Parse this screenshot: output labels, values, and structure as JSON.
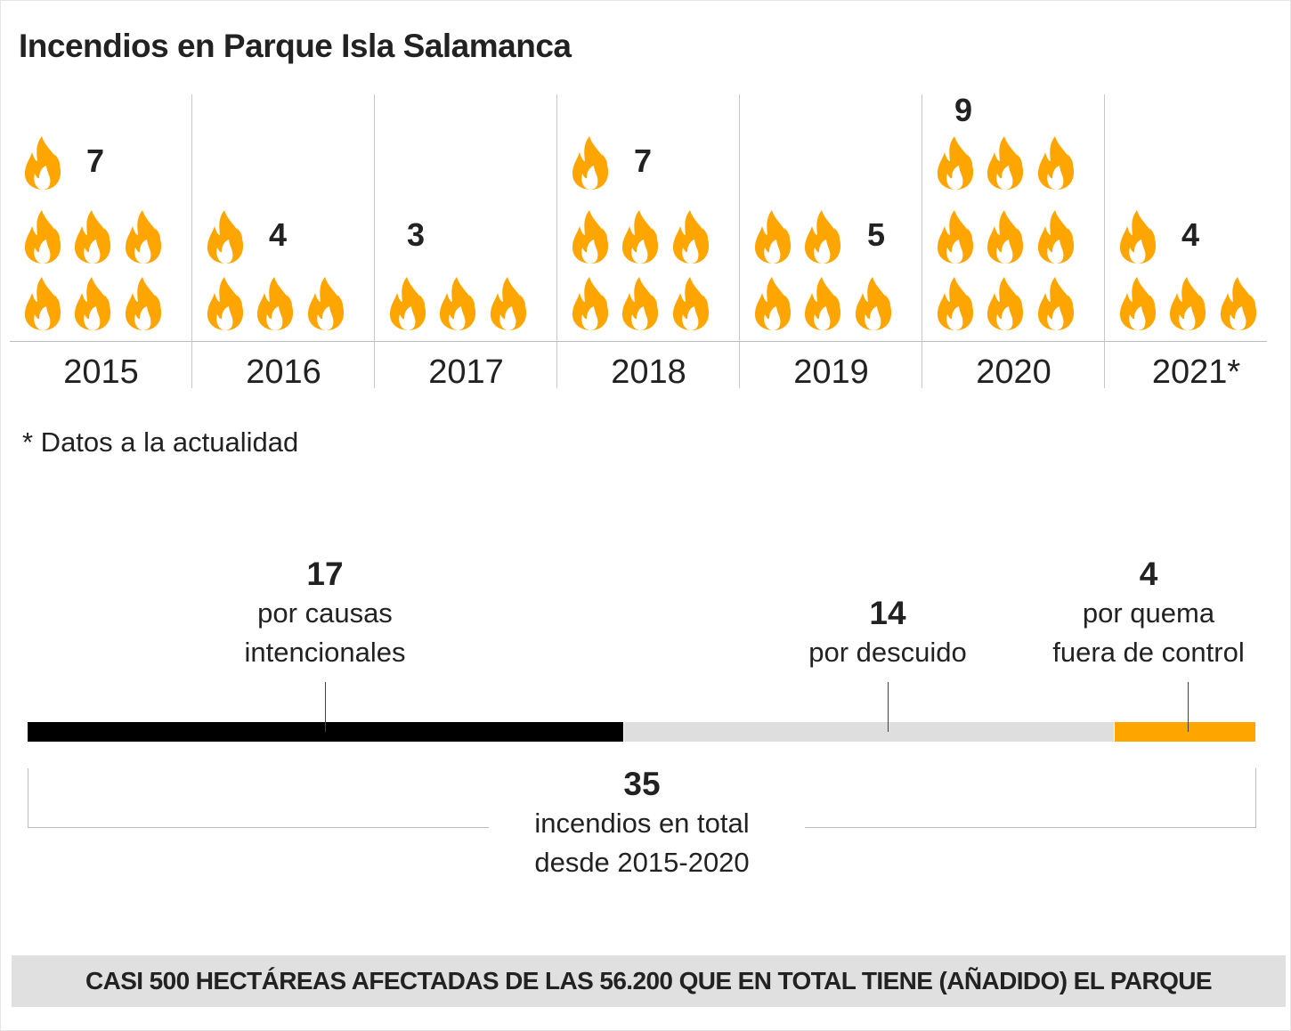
{
  "title": "Incendios en Parque Isla Salamanca",
  "chart_data": {
    "type": "pictogram",
    "title": "Incendios en Parque Isla Salamanca",
    "icon": "flame-icon",
    "icon_color": "#FFA500",
    "categories": [
      "2015",
      "2016",
      "2017",
      "2018",
      "2019",
      "2020",
      "2021*"
    ],
    "values": [
      7,
      4,
      3,
      7,
      5,
      9,
      4
    ],
    "value_labels": [
      "7",
      "4",
      "3",
      "7",
      "5",
      "9",
      "4"
    ]
  },
  "note": "* Datos a la actualidad",
  "causes": {
    "type": "stacked-bar",
    "segments": [
      {
        "value": 17,
        "value_label": "17",
        "label_line1": "por causas",
        "label_line2": "intencionales",
        "color": "#000000"
      },
      {
        "value": 14,
        "value_label": "14",
        "label_line1": "por descuido",
        "label_line2": "",
        "color": "#DEDEDE"
      },
      {
        "value": 4,
        "value_label": "4",
        "label_line1": "por quema",
        "label_line2": "fuera de control",
        "color": "#FFA500"
      }
    ],
    "total_label": "35",
    "total_line1": "incendios en total",
    "total_line2": "desde 2015-2020"
  },
  "footer": "CASI 500 HECTÁREAS AFECTADAS DE LAS 56.200 QUE EN TOTAL TIENE (AÑADIDO) EL PARQUE"
}
